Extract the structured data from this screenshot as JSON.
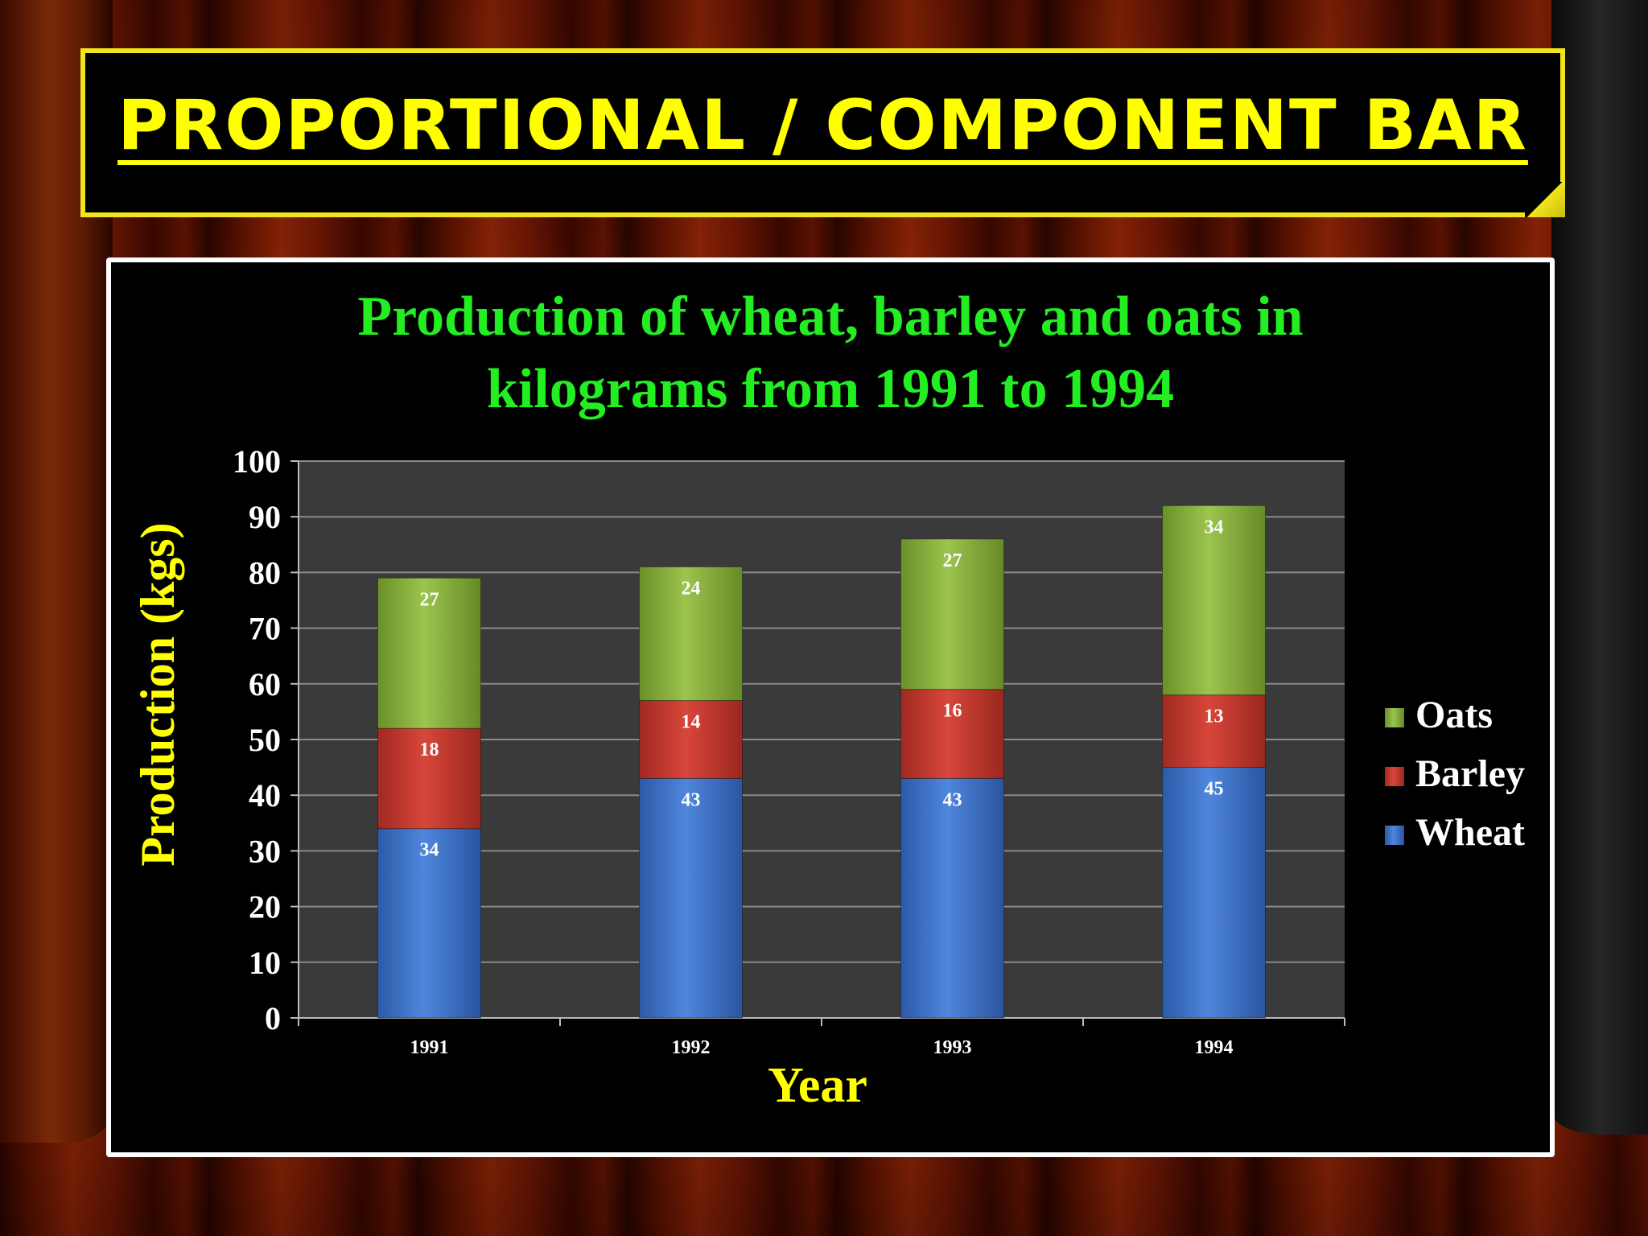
{
  "slide_title": "PROPORTIONAL / COMPONENT BAR",
  "chart_data": {
    "type": "bar",
    "stacked": true,
    "title_line1": "Production of wheat, barley and oats in",
    "title_line2": "kilograms from 1991 to 1994",
    "xlabel": "Year",
    "ylabel": "Production (kgs)",
    "ylim": [
      0,
      100
    ],
    "yticks": [
      0,
      10,
      20,
      30,
      40,
      50,
      60,
      70,
      80,
      90,
      100
    ],
    "categories": [
      "1991",
      "1992",
      "1993",
      "1994"
    ],
    "series": [
      {
        "name": "Wheat",
        "values": [
          34,
          43,
          43,
          45
        ],
        "color": "#3b6fc4"
      },
      {
        "name": "Barley",
        "values": [
          18,
          14,
          16,
          13
        ],
        "color": "#c0392b"
      },
      {
        "name": "Oats",
        "values": [
          27,
          24,
          27,
          34
        ],
        "color": "#7fa83a"
      }
    ],
    "legend_order": [
      "Oats",
      "Barley",
      "Wheat"
    ],
    "legend_position": "right",
    "grid": true,
    "colors": {
      "title": "#22ee22",
      "axis_label": "#ffff00",
      "tick": "#ffffff",
      "plot_bg": "#3a3a3a",
      "gridline": "#8a8a8a"
    }
  }
}
